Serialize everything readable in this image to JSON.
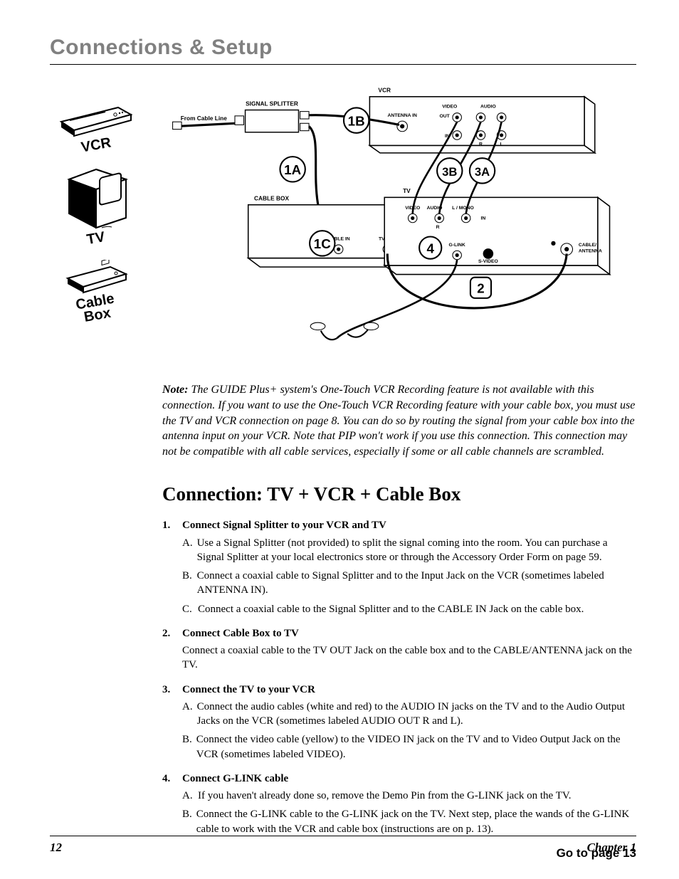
{
  "header": {
    "title": "Connections & Setup"
  },
  "icons": {
    "vcr_label": "VCR",
    "tv_label": "TV",
    "cablebox_label_line1": "Cable",
    "cablebox_label_line2": "Box"
  },
  "diagram": {
    "labels": {
      "vcr": "VCR",
      "signal_splitter": "SIGNAL SPLITTER",
      "from_cable_line": "From Cable Line",
      "cable_box": "CABLE BOX",
      "tv": "TV",
      "antenna_in": "ANTENNA IN",
      "video": "VIDEO",
      "audio": "AUDIO",
      "out": "OUT",
      "in": "IN",
      "r": "R",
      "l": "L",
      "l_mono": "L / MONO",
      "cable_in": "CABLE IN",
      "tv_out": "TV OUT",
      "glink": "G-LINK",
      "svideo": "S-VIDEO",
      "cable_antenna1": "CABLE/",
      "cable_antenna2": "ANTENNA"
    },
    "bubbles": {
      "b1a": "1A",
      "b1b": "1B",
      "b1c": "1C",
      "b2": "2",
      "b3a": "3A",
      "b3b": "3B",
      "b4": "4"
    },
    "colors": {
      "stroke": "#000000",
      "fill_box": "#ffffff",
      "shadow": "#000000"
    }
  },
  "note": {
    "prefix": "Note:",
    "body": " The GUIDE Plus+ system's One-Touch VCR Recording feature is not available with this connection. If you want to use the One-Touch VCR Recording feature with your cable box, you must use the TV and VCR connection on page 8. You can do so by routing the signal from your cable box into the antenna input on your VCR. Note that PIP won't work if you use this connection. This connection may not be compatible with all cable services, especially if some or all cable channels are scrambled."
  },
  "section_heading": "Connection: TV + VCR + Cable Box",
  "steps": [
    {
      "num": "1.",
      "title": "Connect Signal Splitter to your VCR and TV",
      "body_plain": null,
      "subs": [
        {
          "letter": "A.",
          "text": "Use a Signal Splitter (not provided) to split the signal coming into the room. You can purchase a Signal Splitter at your local electronics store or through the Accessory Order Form on page 59."
        },
        {
          "letter": "B.",
          "text": "Connect a coaxial cable to Signal Splitter and to the Input Jack on the VCR (sometimes labeled ANTENNA IN)."
        },
        {
          "letter": "C.",
          "text": "Connect a coaxial cable to the Signal Splitter and to the CABLE IN Jack on the cable box."
        }
      ]
    },
    {
      "num": "2.",
      "title": "Connect Cable Box to TV",
      "body_plain": "Connect a coaxial cable to the TV OUT Jack on the cable box and to the CABLE/ANTENNA jack on the TV.",
      "subs": []
    },
    {
      "num": "3.",
      "title": "Connect the TV to your VCR",
      "body_plain": null,
      "subs": [
        {
          "letter": "A.",
          "text": "Connect the audio cables (white and red) to the AUDIO IN jacks on the TV and to the Audio Output Jacks on the VCR (sometimes labeled AUDIO OUT R and L)."
        },
        {
          "letter": "B.",
          "text": "Connect the video cable (yellow) to the VIDEO IN jack on the TV and to Video Output Jack on the VCR (sometimes labeled VIDEO)."
        }
      ]
    },
    {
      "num": "4.",
      "title": "Connect G-LINK cable",
      "body_plain": null,
      "subs": [
        {
          "letter": "A.",
          "text": "If you haven't already done so, remove the Demo Pin from the G-LINK jack on the TV."
        },
        {
          "letter": "B.",
          "text": "Connect the G-LINK cable to the G-LINK jack on the TV. Next step, place the wands of the G-LINK cable to work with the VCR and cable box (instructions are on p. 13)."
        }
      ]
    }
  ],
  "goto": "Go to page 13",
  "footer": {
    "page": "12",
    "chapter": "Chapter 1"
  }
}
